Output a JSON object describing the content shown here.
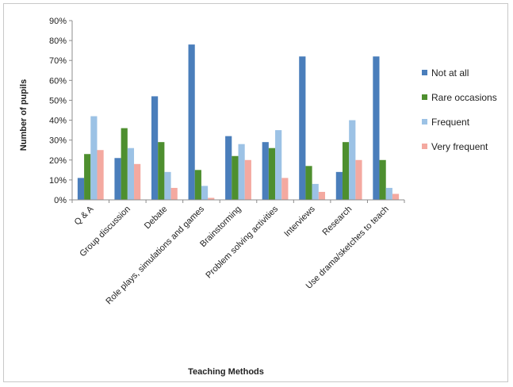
{
  "chart_data": {
    "type": "bar",
    "title": "",
    "xlabel": "Teaching Methods",
    "ylabel": "Number of pupils",
    "ylim": [
      0,
      90
    ],
    "y_ticks": [
      "0%",
      "10%",
      "20%",
      "30%",
      "40%",
      "50%",
      "60%",
      "70%",
      "80%",
      "90%"
    ],
    "grid": false,
    "legend_position": "right",
    "categories": [
      "Q & A",
      "Group discussion",
      "Debate",
      "Role plays, simulations and games",
      "Brainstorming",
      "Problem solving activities",
      "Interviews",
      "Research",
      "Use drama/sketches to teach"
    ],
    "series": [
      {
        "name": "Not at all",
        "color": "#4a7ebb",
        "values": [
          11,
          21,
          52,
          78,
          32,
          29,
          72,
          14,
          72
        ]
      },
      {
        "name": "Rare occasions",
        "color": "#4e8f2f",
        "values": [
          23,
          36,
          29,
          15,
          22,
          26,
          17,
          29,
          20
        ]
      },
      {
        "name": "Frequent",
        "color": "#9cc2e5",
        "values": [
          42,
          26,
          14,
          7,
          28,
          35,
          8,
          40,
          6
        ]
      },
      {
        "name": "Very frequent",
        "color": "#f4a9a0",
        "values": [
          25,
          18,
          6,
          1,
          20,
          11,
          4,
          20,
          3
        ]
      }
    ]
  }
}
